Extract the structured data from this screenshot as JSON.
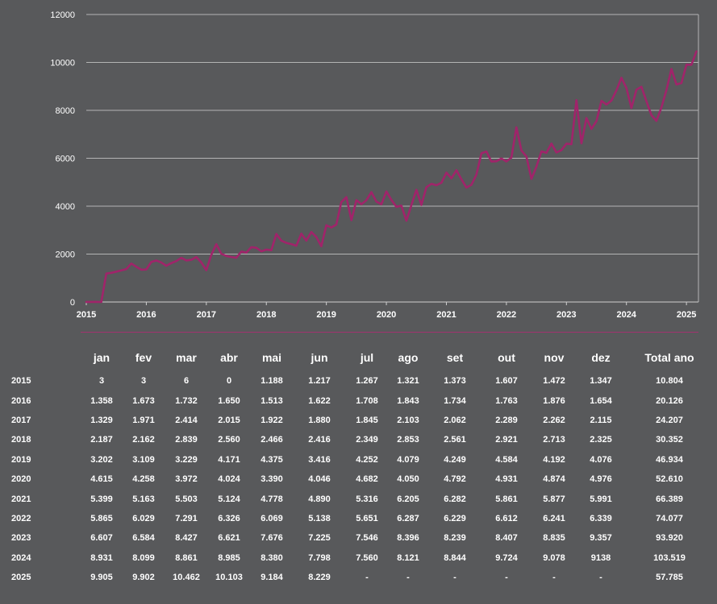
{
  "chart_data": {
    "type": "line",
    "color": "#a0246a",
    "background": "#58595b",
    "grid": true,
    "ylim": [
      0,
      12000
    ],
    "yticks": [
      "0",
      "2000",
      "4000",
      "6000",
      "8000",
      "10000",
      "12000"
    ],
    "xlim": [
      2015,
      2025.2
    ],
    "xticks": [
      "2015",
      "2016",
      "2017",
      "2018",
      "2019",
      "2020",
      "2021",
      "2022",
      "2023",
      "2024",
      "2025"
    ],
    "series": [
      {
        "values": [
          3,
          3,
          6,
          0,
          1188,
          1217,
          1267,
          1321,
          1373,
          1607,
          1472,
          1347,
          1358,
          1673,
          1732,
          1650,
          1513,
          1622,
          1708,
          1843,
          1734,
          1763,
          1876,
          1654,
          1329,
          1971,
          2414,
          2015,
          1922,
          1880,
          1845,
          2103,
          2062,
          2289,
          2262,
          2115,
          2187,
          2162,
          2839,
          2560,
          2466,
          2416,
          2349,
          2853,
          2561,
          2921,
          2713,
          2325,
          3202,
          3109,
          3229,
          4171,
          4375,
          3416,
          4252,
          4079,
          4249,
          4584,
          4192,
          4076,
          4615,
          4258,
          3972,
          4024,
          3390,
          4046,
          4682,
          4050,
          4792,
          4931,
          4874,
          4976,
          5399,
          5163,
          5503,
          5124,
          4778,
          4890,
          5316,
          6205,
          6282,
          5861,
          5877,
          5991,
          5865,
          6029,
          7291,
          6326,
          6069,
          5138,
          5651,
          6287,
          6229,
          6612,
          6241,
          6339,
          6607,
          6584,
          8427,
          6621,
          7676,
          7225,
          7546,
          8396,
          8239,
          8407,
          8835,
          9357,
          8931,
          8099,
          8861,
          8985,
          8380,
          7798,
          7560,
          8121,
          8844,
          9724,
          9078,
          9138,
          9905,
          9902,
          10462
        ]
      }
    ]
  },
  "table": {
    "headers": [
      "jan",
      "fev",
      "mar",
      "abr",
      "mai",
      "jun",
      "jul",
      "ago",
      "set",
      "out",
      "nov",
      "dez",
      "Total ano"
    ],
    "rows": [
      {
        "year": "2015",
        "cells": [
          "3",
          "3",
          "6",
          "0",
          "1.188",
          "1.217",
          "1.267",
          "1.321",
          "1.373",
          "1.607",
          "1.472",
          "1.347",
          "10.804"
        ]
      },
      {
        "year": "2016",
        "cells": [
          "1.358",
          "1.673",
          "1.732",
          "1.650",
          "1.513",
          "1.622",
          "1.708",
          "1.843",
          "1.734",
          "1.763",
          "1.876",
          "1.654",
          "20.126"
        ]
      },
      {
        "year": "2017",
        "cells": [
          "1.329",
          "1.971",
          "2.414",
          "2.015",
          "1.922",
          "1.880",
          "1.845",
          "2.103",
          "2.062",
          "2.289",
          "2.262",
          "2.115",
          "24.207"
        ]
      },
      {
        "year": "2018",
        "cells": [
          "2.187",
          "2.162",
          "2.839",
          "2.560",
          "2.466",
          "2.416",
          "2.349",
          "2.853",
          "2.561",
          "2.921",
          "2.713",
          "2.325",
          "30.352"
        ]
      },
      {
        "year": "2019",
        "cells": [
          "3.202",
          "3.109",
          "3.229",
          "4.171",
          "4.375",
          "3.416",
          "4.252",
          "4.079",
          "4.249",
          "4.584",
          "4.192",
          "4.076",
          "46.934"
        ]
      },
      {
        "year": "2020",
        "cells": [
          "4.615",
          "4.258",
          "3.972",
          "4.024",
          "3.390",
          "4.046",
          "4.682",
          "4.050",
          "4.792",
          "4.931",
          "4.874",
          "4.976",
          "52.610"
        ]
      },
      {
        "year": "2021",
        "cells": [
          "5.399",
          "5.163",
          "5.503",
          "5.124",
          "4.778",
          "4.890",
          "5.316",
          "6.205",
          "6.282",
          "5.861",
          "5.877",
          "5.991",
          "66.389"
        ]
      },
      {
        "year": "2022",
        "cells": [
          "5.865",
          "6.029",
          "7.291",
          "6.326",
          "6.069",
          "5.138",
          "5.651",
          "6.287",
          "6.229",
          "6.612",
          "6.241",
          "6.339",
          "74.077"
        ]
      },
      {
        "year": "2023",
        "cells": [
          "6.607",
          "6.584",
          "8.427",
          "6.621",
          "7.676",
          "7.225",
          "7.546",
          "8.396",
          "8.239",
          "8.407",
          "8.835",
          "9.357",
          "93.920"
        ]
      },
      {
        "year": "2024",
        "cells": [
          "8.931",
          "8.099",
          "8.861",
          "8.985",
          "8.380",
          "7.798",
          "7.560",
          "8.121",
          "8.844",
          "9.724",
          "9.078",
          "9138",
          "103.519"
        ]
      },
      {
        "year": "2025",
        "cells": [
          "9.905",
          "9.902",
          "10.462",
          "10.103",
          "9.184",
          "8.229",
          "-",
          "-",
          "-",
          "-",
          "-",
          "-",
          "57.785"
        ]
      }
    ]
  }
}
